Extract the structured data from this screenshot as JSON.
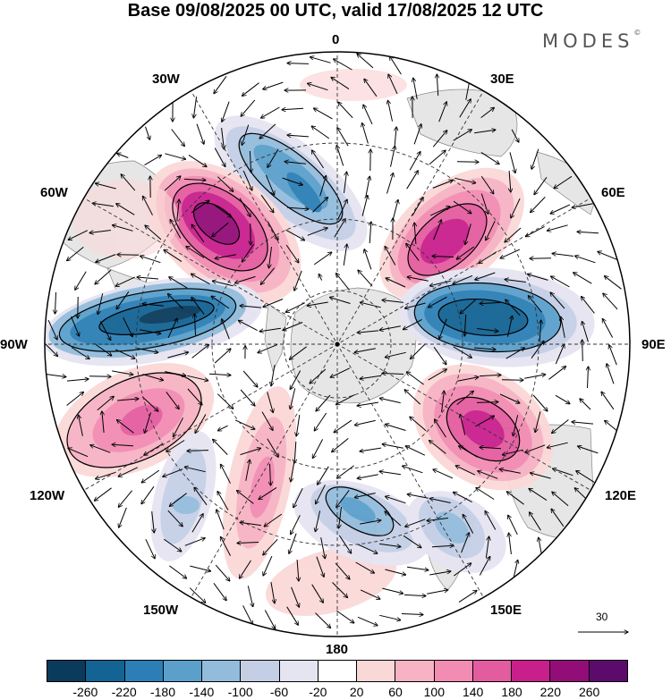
{
  "title": "Base 09/08/2025 00 UTC, valid 17/08/2025 12 UTC",
  "logo": "MODES",
  "logo_mark": "©",
  "longitudes": {
    "top": "0",
    "bottom": "180",
    "left": "90W",
    "right": "90E",
    "w30": "30W",
    "e30": "30E",
    "w60": "60W",
    "e60": "60E",
    "w120": "120W",
    "e120": "120E",
    "w150": "150W",
    "e150": "150E"
  },
  "reference_vector": {
    "label": "30"
  },
  "colorbar": {
    "colors": [
      "#0a3a5c",
      "#136494",
      "#2c7fb6",
      "#5aa0cb",
      "#93bcdc",
      "#c4cfe6",
      "#e5e4f1",
      "#ffffff",
      "#fbd8d8",
      "#f7b3c4",
      "#f28cb2",
      "#e45ca0",
      "#c81f8c",
      "#930d78",
      "#5c0a6c"
    ],
    "labels": [
      "-260",
      "-220",
      "-180",
      "-140",
      "-100",
      "-60",
      "-20",
      "20",
      "60",
      "100",
      "140",
      "180",
      "220",
      "260"
    ]
  }
}
